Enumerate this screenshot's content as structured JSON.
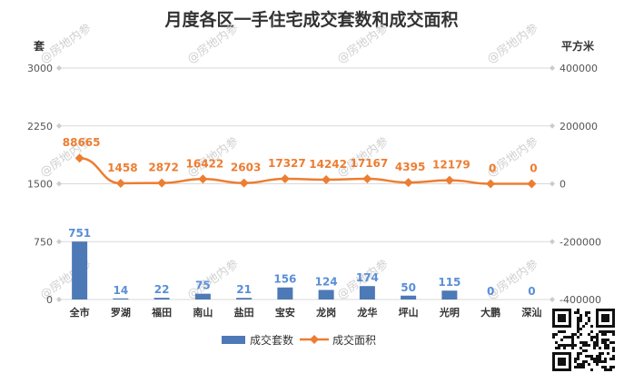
{
  "chart_data": {
    "type": "bar",
    "title": "月度各区一手住宅成交套数和成交面积",
    "ylabel": "套",
    "y2label": "平方米",
    "ylim": [
      0,
      3000
    ],
    "y2lim": [
      -400000,
      400000
    ],
    "yticks": [
      "0",
      "750",
      "1500",
      "2250",
      "3000"
    ],
    "y2ticks": [
      "-400000",
      "-200000",
      "0",
      "200000",
      "400000"
    ],
    "categories": [
      "全市",
      "罗湖",
      "福田",
      "南山",
      "盐田",
      "宝安",
      "龙岗",
      "龙华",
      "坪山",
      "光明",
      "大鹏",
      "深汕"
    ],
    "series": [
      {
        "name": "成交套数",
        "type": "bar",
        "axis": "left",
        "values": [
          751,
          14,
          22,
          75,
          21,
          156,
          124,
          174,
          50,
          115,
          0,
          0
        ]
      },
      {
        "name": "成交面积",
        "type": "line",
        "axis": "right",
        "values": [
          88665,
          1458,
          2872,
          16422,
          2603,
          17327,
          14242,
          17167,
          4395,
          12179,
          0,
          0
        ]
      }
    ],
    "colors": {
      "bar": "#4e79b7",
      "line": "#ed7d31",
      "bar_label": "#5b8fd6",
      "grid": "#d9d9d9"
    },
    "grid": true,
    "legend": "bottom"
  },
  "watermark": "@房地内参"
}
